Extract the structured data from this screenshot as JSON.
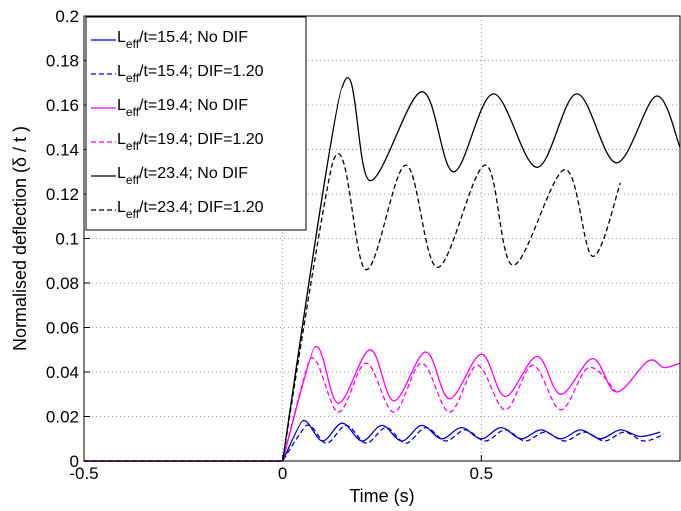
{
  "chart_data": {
    "type": "line",
    "title": "",
    "xlabel": "Time (s)",
    "ylabel": "Normalised deflection (δ / t )",
    "xlim": [
      -0.5,
      1.0
    ],
    "ylim": [
      0,
      0.2
    ],
    "xticks": [
      -0.5,
      0,
      0.5
    ],
    "xtick_labels": [
      "-0.5",
      "0",
      "0.5"
    ],
    "yticks": [
      0,
      0.02,
      0.04,
      0.06,
      0.08,
      0.1,
      0.12,
      0.14,
      0.16,
      0.18,
      0.2
    ],
    "ytick_labels": [
      "0",
      "0.02",
      "0.04",
      "0.06",
      "0.08",
      "0.1",
      "0.12",
      "0.14",
      "0.16",
      "0.18",
      "0.2"
    ],
    "grid": true,
    "legend_position": "top-left",
    "series": [
      {
        "name": "Leff/t=15.4; No DIF",
        "legend_main": "L",
        "legend_sub": "eff",
        "legend_rest": "/t=15.4; No DIF",
        "color": "#0000cc",
        "dash": "solid",
        "x": [
          -0.5,
          0,
          0.05,
          0.1,
          0.15,
          0.2,
          0.25,
          0.3,
          0.35,
          0.4,
          0.45,
          0.5,
          0.55,
          0.6,
          0.65,
          0.7,
          0.75,
          0.8,
          0.85,
          0.9,
          0.95
        ],
        "y": [
          0,
          0,
          0.018,
          0.009,
          0.017,
          0.009,
          0.016,
          0.009,
          0.016,
          0.01,
          0.015,
          0.01,
          0.015,
          0.01,
          0.014,
          0.01,
          0.014,
          0.01,
          0.014,
          0.011,
          0.013
        ]
      },
      {
        "name": "Leff/t=15.4; DIF=1.20",
        "legend_main": "L",
        "legend_sub": "eff",
        "legend_rest": "/t=15.4; DIF=1.20",
        "color": "#0000cc",
        "dash": "dashed",
        "x": [
          -0.5,
          0,
          0.06,
          0.11,
          0.16,
          0.21,
          0.26,
          0.31,
          0.36,
          0.41,
          0.46,
          0.51,
          0.56,
          0.61,
          0.66,
          0.71,
          0.76,
          0.81,
          0.86,
          0.91,
          0.96
        ],
        "y": [
          0,
          0,
          0.016,
          0.008,
          0.016,
          0.008,
          0.015,
          0.008,
          0.015,
          0.009,
          0.014,
          0.009,
          0.014,
          0.009,
          0.013,
          0.009,
          0.013,
          0.009,
          0.013,
          0.009,
          0.012
        ]
      },
      {
        "name": "Leff/t=19.4; No DIF",
        "legend_main": "L",
        "legend_sub": "eff",
        "legend_rest": "/t=19.4; No DIF",
        "color": "#ff00ff",
        "dash": "solid",
        "x": [
          -0.5,
          0,
          0.08,
          0.14,
          0.22,
          0.28,
          0.36,
          0.42,
          0.5,
          0.56,
          0.64,
          0.7,
          0.78,
          0.84,
          0.92,
          0.96,
          1.0
        ],
        "y": [
          0,
          0,
          0.051,
          0.026,
          0.05,
          0.027,
          0.049,
          0.028,
          0.048,
          0.029,
          0.047,
          0.03,
          0.046,
          0.031,
          0.045,
          0.042,
          0.044
        ]
      },
      {
        "name": "Leff/t=19.4; DIF=1.20",
        "legend_main": "L",
        "legend_sub": "eff",
        "legend_rest": "/t=19.4; DIF=1.20",
        "color": "#ff00ff",
        "dash": "dashed",
        "x": [
          -0.5,
          0,
          0.07,
          0.14,
          0.21,
          0.28,
          0.35,
          0.42,
          0.49,
          0.56,
          0.63,
          0.7,
          0.77,
          0.84
        ],
        "y": [
          0,
          0,
          0.046,
          0.022,
          0.044,
          0.022,
          0.044,
          0.022,
          0.043,
          0.023,
          0.043,
          0.023,
          0.042,
          0.031
        ]
      },
      {
        "name": "Leff/t=23.4; No DIF",
        "legend_main": "L",
        "legend_sub": "eff",
        "legend_rest": "/t=23.4; No DIF",
        "color": "#000000",
        "dash": "solid",
        "x": [
          -0.5,
          0,
          0.15,
          0.22,
          0.35,
          0.43,
          0.53,
          0.64,
          0.74,
          0.84,
          0.94,
          1.0
        ],
        "y": [
          0,
          0,
          0.168,
          0.126,
          0.166,
          0.13,
          0.165,
          0.132,
          0.165,
          0.134,
          0.164,
          0.141
        ]
      },
      {
        "name": "Leff/t=23.4; DIF=1.20",
        "legend_main": "L",
        "legend_sub": "eff",
        "legend_rest": "/t=23.4; DIF=1.20",
        "color": "#000000",
        "dash": "dashed",
        "x": [
          -0.5,
          0,
          0.13,
          0.21,
          0.31,
          0.39,
          0.51,
          0.58,
          0.71,
          0.78,
          0.85
        ],
        "y": [
          0,
          0,
          0.136,
          0.086,
          0.133,
          0.087,
          0.133,
          0.088,
          0.131,
          0.092,
          0.125
        ]
      }
    ]
  }
}
